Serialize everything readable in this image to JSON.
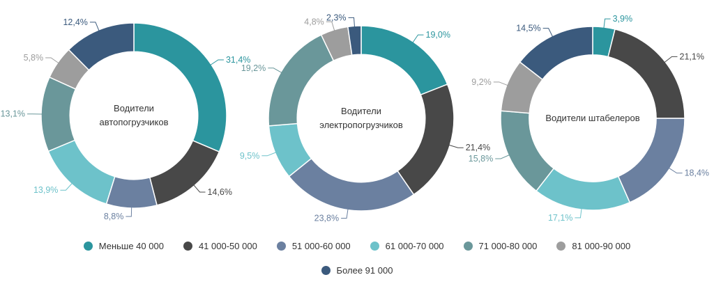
{
  "colors": [
    "#2b959e",
    "#484848",
    "#6b80a0",
    "#6dc2ca",
    "#6a979a",
    "#9d9d9d",
    "#3b5a7d"
  ],
  "chart_data": [
    {
      "type": "pie",
      "center_label": [
        "Водители",
        "автопогрузчиков"
      ],
      "categories": [
        "Меньше 40 000",
        "41 000-50 000",
        "51 000-60 000",
        "61 000-70 000",
        "71 000-80 000",
        "81 000-90 000",
        "Более 91 000"
      ],
      "values": [
        31.4,
        14.6,
        8.8,
        13.9,
        13.1,
        5.8,
        12.4
      ],
      "labels": [
        "31,4%",
        "14,6%",
        "8,8%",
        "13,9%",
        "13,1%",
        "5,8%",
        "12,4%"
      ]
    },
    {
      "type": "pie",
      "center_label": [
        "Водители",
        "электропогрузчиков"
      ],
      "categories": [
        "Меньше 40 000",
        "41 000-50 000",
        "51 000-60 000",
        "61 000-70 000",
        "71 000-80 000",
        "81 000-90 000",
        "Более 91 000"
      ],
      "values": [
        19.0,
        21.4,
        23.8,
        9.5,
        19.2,
        4.8,
        2.3
      ],
      "labels": [
        "19,0%",
        "21,4%",
        "23,8%",
        "9,5%",
        "19,2%",
        "4,8%",
        "2,3%"
      ]
    },
    {
      "type": "pie",
      "center_label": [
        "Водители штабелеров"
      ],
      "categories": [
        "Меньше 40 000",
        "41 000-50 000",
        "51 000-60 000",
        "61 000-70 000",
        "71 000-80 000",
        "81 000-90 000",
        "Более 91 000"
      ],
      "values": [
        3.9,
        21.1,
        18.4,
        17.1,
        15.8,
        9.2,
        14.5
      ],
      "labels": [
        "3,9%",
        "21,1%",
        "18,4%",
        "17,1%",
        "15,8%",
        "9,2%",
        "14,5%"
      ]
    }
  ],
  "legend": [
    {
      "label": "Меньше 40 000",
      "color": "#2b959e"
    },
    {
      "label": "41 000-50 000",
      "color": "#484848"
    },
    {
      "label": "51 000-60 000",
      "color": "#6b80a0"
    },
    {
      "label": "61 000-70 000",
      "color": "#6dc2ca"
    },
    {
      "label": "71 000-80 000",
      "color": "#6a979a"
    },
    {
      "label": "81 000-90 000",
      "color": "#9d9d9d"
    },
    {
      "label": "Более 91 000",
      "color": "#3b5a7d"
    }
  ]
}
